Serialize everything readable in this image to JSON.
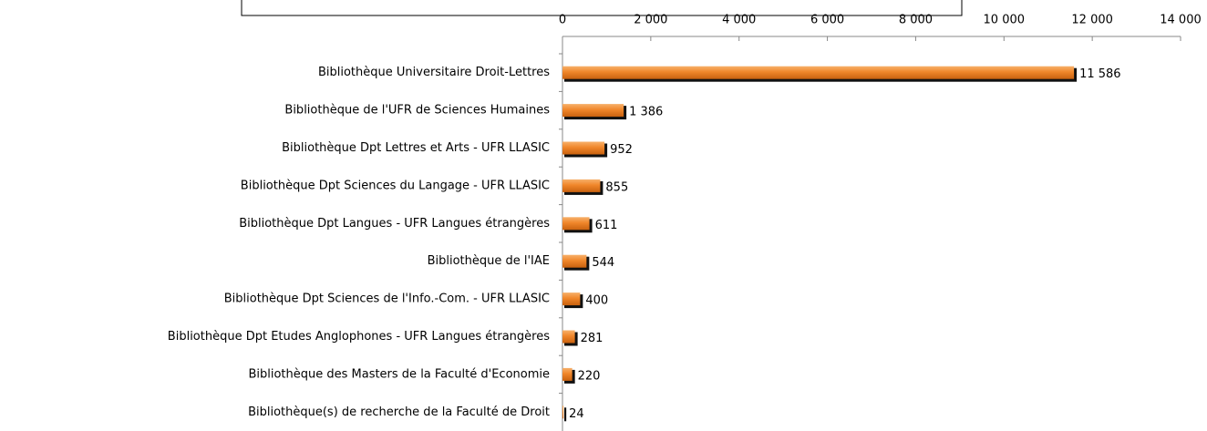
{
  "chart_data": {
    "type": "bar",
    "orientation": "horizontal",
    "categories": [
      "Bibliothèque Universitaire Droit-Lettres",
      "Bibliothèque de l'UFR de Sciences Humaines",
      "Bibliothèque Dpt Lettres et Arts - UFR LLASIC",
      "Bibliothèque Dpt Sciences du Langage - UFR LLASIC",
      "Bibliothèque Dpt Langues - UFR Langues étrangères",
      "Bibliothèque de l'IAE",
      "Bibliothèque Dpt Sciences de l'Info.-Com. - UFR LLASIC",
      "Bibliothèque Dpt Etudes Anglophones - UFR Langues étrangères",
      "Bibliothèque des Masters de la Faculté d'Economie",
      "Bibliothèque(s) de recherche de la Faculté de Droit"
    ],
    "values": [
      11586,
      1386,
      952,
      855,
      611,
      544,
      400,
      281,
      220,
      24
    ],
    "value_labels": [
      "11 586",
      "1 386",
      "952",
      "855",
      "611",
      "544",
      "400",
      "281",
      "220",
      "24"
    ],
    "color": "#f0862a",
    "xlim": [
      0,
      14000
    ],
    "xticks": [
      0,
      {
        "value": 2000,
        "label": "2 000"
      },
      {
        "value": 4000,
        "label": "4 000"
      },
      {
        "value": 6000,
        "label": "6 000"
      },
      {
        "value": 8000,
        "label": "8 000"
      },
      {
        "value": 10000,
        "label": "10 000"
      },
      {
        "value": 12000,
        "label": "12 000"
      },
      {
        "value": 14000,
        "label": "14 000"
      }
    ],
    "grid": false
  }
}
